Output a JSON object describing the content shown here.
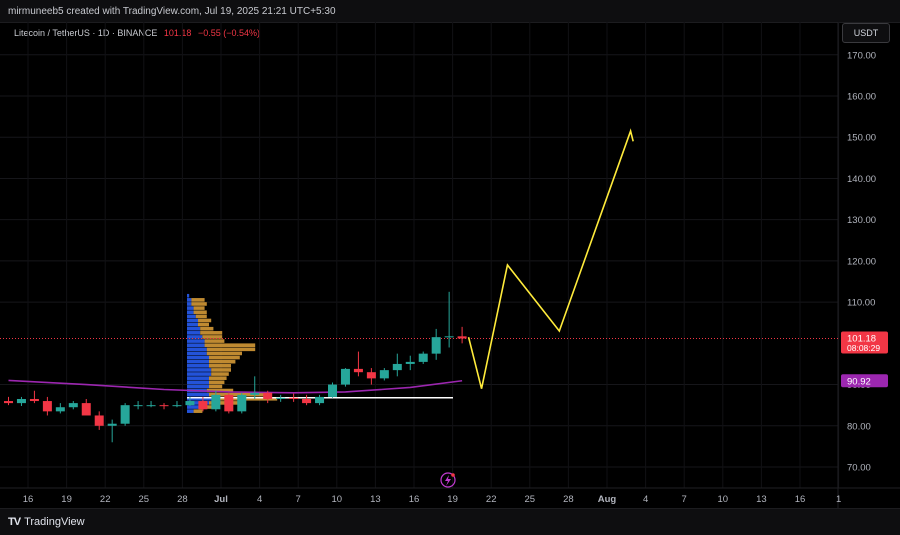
{
  "header": {
    "credit": "mirmuneeb5 created with TradingView.com, Jul 19, 2025 21:21 UTC+5:30"
  },
  "legend": {
    "symbol": "Litecoin / TetherUS · 1D · BINANCE",
    "price": "101.18",
    "change": "−0.55 (−0.54%)"
  },
  "currency_button": "USDT",
  "footer": {
    "brand": "TradingView",
    "logo": "TV"
  },
  "chart_data": {
    "type": "candlestick",
    "y_ticks": [
      "170.00",
      "160.00",
      "150.00",
      "140.00",
      "130.00",
      "120.00",
      "110.00",
      "90.00",
      "80.00",
      "70.00"
    ],
    "x_ticks": [
      "16",
      "19",
      "22",
      "25",
      "28",
      "Jul",
      "4",
      "7",
      "10",
      "13",
      "16",
      "19",
      "22",
      "25",
      "28",
      "Aug",
      "4",
      "7",
      "10",
      "13",
      "16",
      "1"
    ],
    "ylim": [
      65,
      175
    ],
    "colors": {
      "up": "#26a69a",
      "down": "#f23645",
      "ma": "#9c27b0",
      "projection": "#ffeb3b",
      "support": "#ffffff"
    },
    "candles": [
      {
        "date": "Jun 14",
        "o": 86.0,
        "h": 87.0,
        "l": 85.0,
        "c": 85.5
      },
      {
        "date": "Jun 15",
        "o": 85.5,
        "h": 87.0,
        "l": 84.8,
        "c": 86.5
      },
      {
        "date": "Jun 16",
        "o": 86.5,
        "h": 88.5,
        "l": 85.5,
        "c": 86.0
      },
      {
        "date": "Jun 17",
        "o": 86.0,
        "h": 87.0,
        "l": 82.5,
        "c": 83.5
      },
      {
        "date": "Jun 18",
        "o": 83.5,
        "h": 85.5,
        "l": 83.0,
        "c": 84.5
      },
      {
        "date": "Jun 19",
        "o": 84.5,
        "h": 86.0,
        "l": 84.0,
        "c": 85.5
      },
      {
        "date": "Jun 20",
        "o": 85.5,
        "h": 86.5,
        "l": 83.5,
        "c": 82.5
      },
      {
        "date": "Jun 21",
        "o": 82.5,
        "h": 83.5,
        "l": 79.0,
        "c": 80.0
      },
      {
        "date": "Jun 22",
        "o": 80.0,
        "h": 81.5,
        "l": 76.0,
        "c": 80.5
      },
      {
        "date": "Jun 23",
        "o": 80.5,
        "h": 85.5,
        "l": 80.0,
        "c": 85.0
      },
      {
        "date": "Jun 24",
        "o": 85.0,
        "h": 86.0,
        "l": 84.0,
        "c": 85.0
      },
      {
        "date": "Jun 25",
        "o": 85.0,
        "h": 86.0,
        "l": 84.5,
        "c": 85.0
      },
      {
        "date": "Jun 26",
        "o": 85.0,
        "h": 85.5,
        "l": 84.0,
        "c": 84.8
      },
      {
        "date": "Jun 27",
        "o": 84.8,
        "h": 86.0,
        "l": 84.5,
        "c": 85.0
      },
      {
        "date": "Jun 28",
        "o": 85.0,
        "h": 87.0,
        "l": 84.8,
        "c": 86.0
      },
      {
        "date": "Jun 29",
        "o": 86.0,
        "h": 87.0,
        "l": 83.5,
        "c": 84.0
      },
      {
        "date": "Jun 30",
        "o": 84.0,
        "h": 88.5,
        "l": 83.5,
        "c": 87.5
      },
      {
        "date": "Jul 1",
        "o": 87.5,
        "h": 88.0,
        "l": 83.0,
        "c": 83.5
      },
      {
        "date": "Jul 2",
        "o": 83.5,
        "h": 88.0,
        "l": 83.0,
        "c": 87.5
      },
      {
        "date": "Jul 3",
        "o": 87.5,
        "h": 92.0,
        "l": 86.5,
        "c": 88.0
      },
      {
        "date": "Jul 4",
        "o": 88.0,
        "h": 88.5,
        "l": 85.5,
        "c": 86.5
      },
      {
        "date": "Jul 5",
        "o": 86.5,
        "h": 87.5,
        "l": 85.8,
        "c": 86.8
      },
      {
        "date": "Jul 6",
        "o": 86.8,
        "h": 87.8,
        "l": 85.8,
        "c": 86.5
      },
      {
        "date": "Jul 7",
        "o": 86.5,
        "h": 87.5,
        "l": 85.0,
        "c": 85.5
      },
      {
        "date": "Jul 8",
        "o": 85.5,
        "h": 87.5,
        "l": 85.0,
        "c": 87.0
      },
      {
        "date": "Jul 9",
        "o": 87.0,
        "h": 90.5,
        "l": 86.8,
        "c": 90.0
      },
      {
        "date": "Jul 10",
        "o": 90.0,
        "h": 94.0,
        "l": 89.5,
        "c": 93.8
      },
      {
        "date": "Jul 11",
        "o": 93.8,
        "h": 98.0,
        "l": 92.0,
        "c": 93.0
      },
      {
        "date": "Jul 12",
        "o": 93.0,
        "h": 94.0,
        "l": 90.0,
        "c": 91.5
      },
      {
        "date": "Jul 13",
        "o": 91.5,
        "h": 94.0,
        "l": 91.0,
        "c": 93.5
      },
      {
        "date": "Jul 14",
        "o": 93.5,
        "h": 97.5,
        "l": 92.0,
        "c": 95.0
      },
      {
        "date": "Jul 15",
        "o": 95.0,
        "h": 97.0,
        "l": 93.5,
        "c": 95.5
      },
      {
        "date": "Jul 16",
        "o": 95.5,
        "h": 98.0,
        "l": 95.0,
        "c": 97.5
      },
      {
        "date": "Jul 17",
        "o": 97.5,
        "h": 103.5,
        "l": 96.0,
        "c": 101.5
      },
      {
        "date": "Jul 18",
        "o": 101.5,
        "h": 112.5,
        "l": 99.0,
        "c": 101.7
      },
      {
        "date": "Jul 19",
        "o": 101.7,
        "h": 104.0,
        "l": 100.0,
        "c": 101.18
      }
    ],
    "moving_average": [
      {
        "date": "Jun 14",
        "value": 91.0
      },
      {
        "date": "Jun 20",
        "value": 90.0
      },
      {
        "date": "Jun 26",
        "value": 88.8
      },
      {
        "date": "Jul 1",
        "value": 88.2
      },
      {
        "date": "Jul 6",
        "value": 88.0
      },
      {
        "date": "Jul 10",
        "value": 88.2
      },
      {
        "date": "Jul 15",
        "value": 89.3
      },
      {
        "date": "Jul 19",
        "value": 90.92
      }
    ],
    "support_level": 86.8,
    "last_price_line": 101.18,
    "projection_path": [
      {
        "date": "Jul 19.5",
        "value": 101.5
      },
      {
        "date": "Jul 20.5",
        "value": 89.0
      },
      {
        "date": "Jul 22.5",
        "value": 119.0
      },
      {
        "date": "Jul 26.5",
        "value": 103.0
      },
      {
        "date": "Aug 1",
        "value": 151.5
      },
      {
        "date": "Aug 1.2",
        "value": 149.0
      }
    ],
    "price_labels": [
      {
        "value": 101.18,
        "text": "101.18",
        "subtext": "08:08:29",
        "color": "#f23645"
      },
      {
        "value": 90.92,
        "text": "90.92",
        "color": "#9c27b0"
      }
    ],
    "volume_profile": [
      {
        "price": 111.5,
        "buy": 1,
        "sell": 0
      },
      {
        "price": 110.5,
        "buy": 2,
        "sell": 6
      },
      {
        "price": 109.5,
        "buy": 2,
        "sell": 7
      },
      {
        "price": 108.5,
        "buy": 3,
        "sell": 5
      },
      {
        "price": 107.5,
        "buy": 3,
        "sell": 6
      },
      {
        "price": 106.5,
        "buy": 4,
        "sell": 5
      },
      {
        "price": 105.5,
        "buy": 5,
        "sell": 6
      },
      {
        "price": 104.5,
        "buy": 5,
        "sell": 5
      },
      {
        "price": 103.5,
        "buy": 6,
        "sell": 6
      },
      {
        "price": 102.5,
        "buy": 6,
        "sell": 10
      },
      {
        "price": 101.5,
        "buy": 7,
        "sell": 9
      },
      {
        "price": 100.5,
        "buy": 8,
        "sell": 9
      },
      {
        "price": 99.5,
        "buy": 8,
        "sell": 23
      },
      {
        "price": 98.5,
        "buy": 9,
        "sell": 22
      },
      {
        "price": 97.5,
        "buy": 9,
        "sell": 16
      },
      {
        "price": 96.5,
        "buy": 10,
        "sell": 14
      },
      {
        "price": 95.5,
        "buy": 10,
        "sell": 12
      },
      {
        "price": 94.5,
        "buy": 10,
        "sell": 10
      },
      {
        "price": 93.5,
        "buy": 11,
        "sell": 9
      },
      {
        "price": 92.5,
        "buy": 11,
        "sell": 8
      },
      {
        "price": 91.5,
        "buy": 10,
        "sell": 8
      },
      {
        "price": 90.5,
        "buy": 10,
        "sell": 7
      },
      {
        "price": 89.5,
        "buy": 10,
        "sell": 6
      },
      {
        "price": 88.5,
        "buy": 9,
        "sell": 12
      },
      {
        "price": 87.5,
        "buy": 10,
        "sell": 26
      },
      {
        "price": 86.5,
        "buy": 12,
        "sell": 29
      },
      {
        "price": 85.5,
        "buy": 10,
        "sell": 14
      },
      {
        "price": 84.5,
        "buy": 6,
        "sell": 8
      },
      {
        "price": 83.5,
        "buy": 3,
        "sell": 4
      }
    ],
    "realtime_icon": "lightning-icon"
  }
}
